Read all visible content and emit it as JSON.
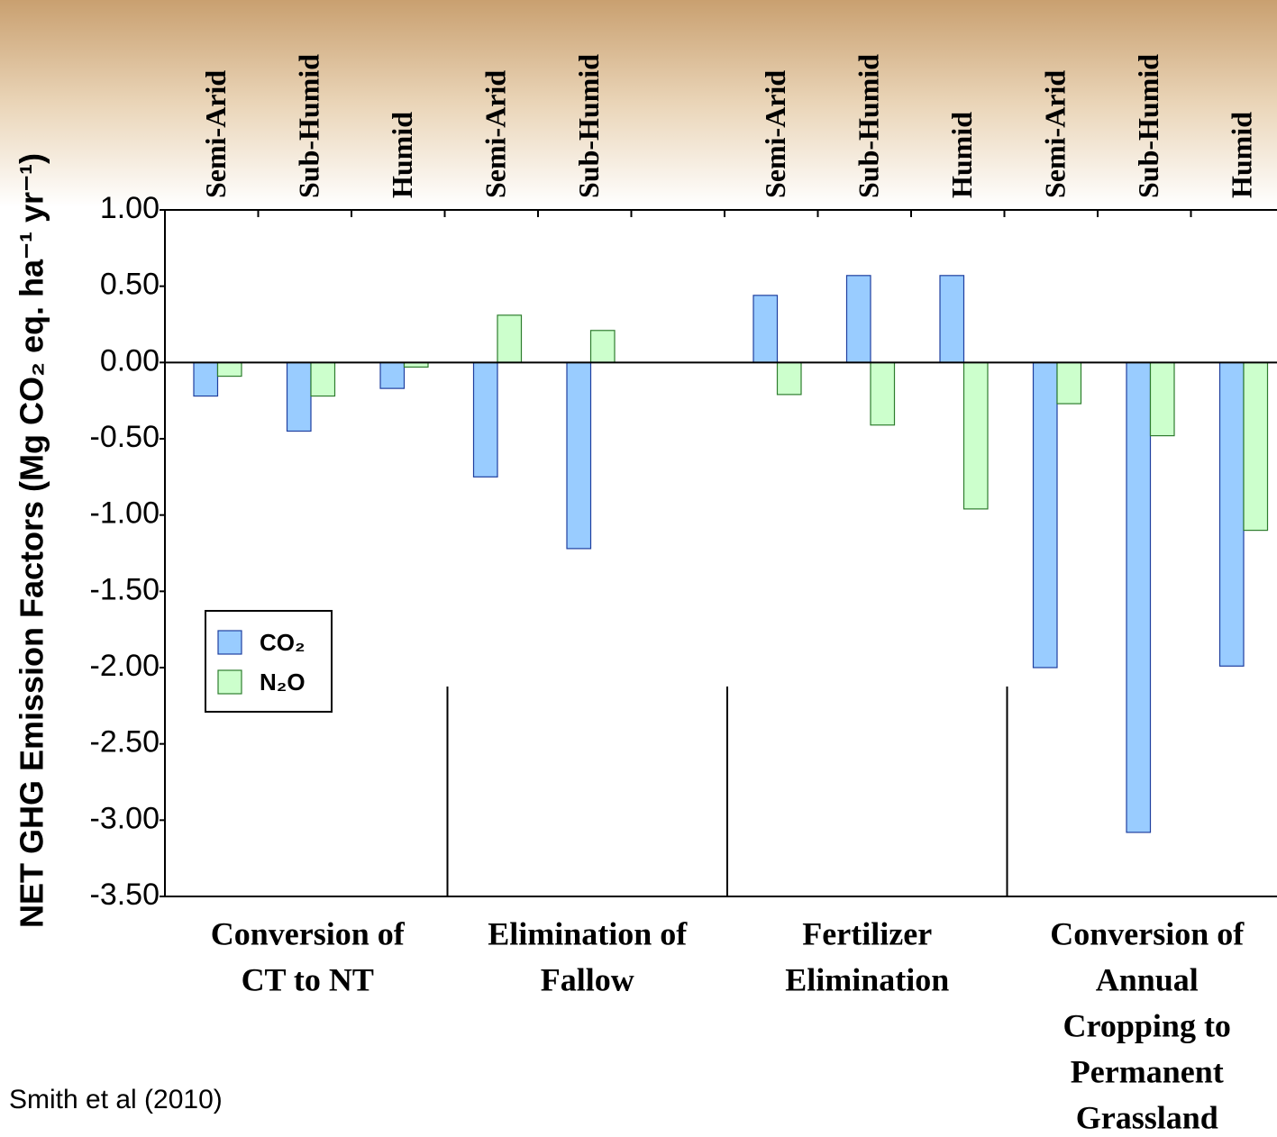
{
  "chart_data": {
    "type": "bar",
    "y_label": "NET GHG Emission Factors (Mg CO₂ eq. ha⁻¹ yr⁻¹)",
    "categories": [
      "Semi-Arid",
      "Sub-Humid",
      "Humid",
      "Semi-Arid",
      "Sub-Humid",
      null,
      "Semi-Arid",
      "Sub-Humid",
      "Humid",
      "Semi-Arid",
      "Sub-Humid",
      "Humid"
    ],
    "groups": [
      [
        "Conversion of",
        "CT to NT"
      ],
      [
        "Elimination of",
        "Fallow"
      ],
      [
        "Fertilizer",
        "Elimination"
      ],
      [
        "Conversion of",
        "Annual",
        "Cropping to",
        "Permanent",
        "Grassland"
      ]
    ],
    "series": [
      {
        "name": "CO₂",
        "color": "#99ccff",
        "values": [
          -0.22,
          -0.45,
          -0.17,
          -0.75,
          -1.22,
          null,
          0.44,
          0.57,
          0.57,
          -2.0,
          -3.08,
          -1.99
        ]
      },
      {
        "name": "N₂O",
        "color": "#ccffcc",
        "values": [
          -0.09,
          -0.22,
          -0.03,
          0.31,
          0.21,
          null,
          -0.21,
          -0.41,
          -0.96,
          -0.27,
          -0.48,
          -1.1
        ]
      }
    ],
    "ylim": [
      -3.5,
      1.0
    ],
    "yticks": [
      {
        "value": 1.0,
        "label": "1.00"
      },
      {
        "value": 0.5,
        "label": "0.50"
      },
      {
        "value": 0.0,
        "label": "0.00"
      },
      {
        "value": -0.5,
        "label": "-0.50"
      },
      {
        "value": -1.0,
        "label": "-1.00"
      },
      {
        "value": -1.5,
        "label": "-1.50"
      },
      {
        "value": -2.0,
        "label": "-2.00"
      },
      {
        "value": -2.5,
        "label": "-2.50"
      },
      {
        "value": -3.0,
        "label": "-3.00"
      },
      {
        "value": -3.5,
        "label": "-3.50"
      }
    ],
    "source": "Smith et al (2010)"
  }
}
